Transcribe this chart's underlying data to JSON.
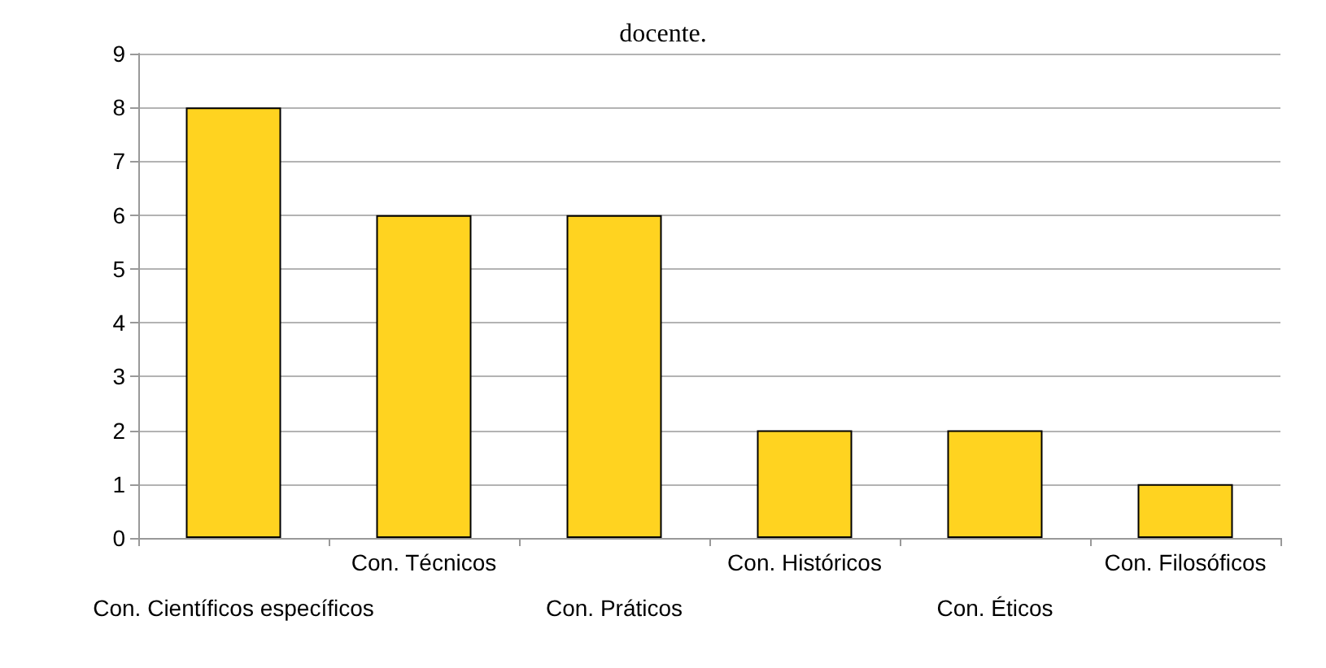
{
  "chart_data": {
    "type": "bar",
    "title": "docente.",
    "categories": [
      "Con. Científicos específicos",
      "Con. Técnicos",
      "Con. Práticos",
      "Con. Históricos",
      "Con. Éticos",
      "Con. Filosóficos"
    ],
    "values": [
      8,
      6,
      6,
      2,
      2,
      1
    ],
    "color": "#ffd320",
    "ylim": [
      0,
      9
    ],
    "yticks": [
      0,
      1,
      2,
      3,
      4,
      5,
      6,
      7,
      8,
      9
    ],
    "grid": "y"
  }
}
